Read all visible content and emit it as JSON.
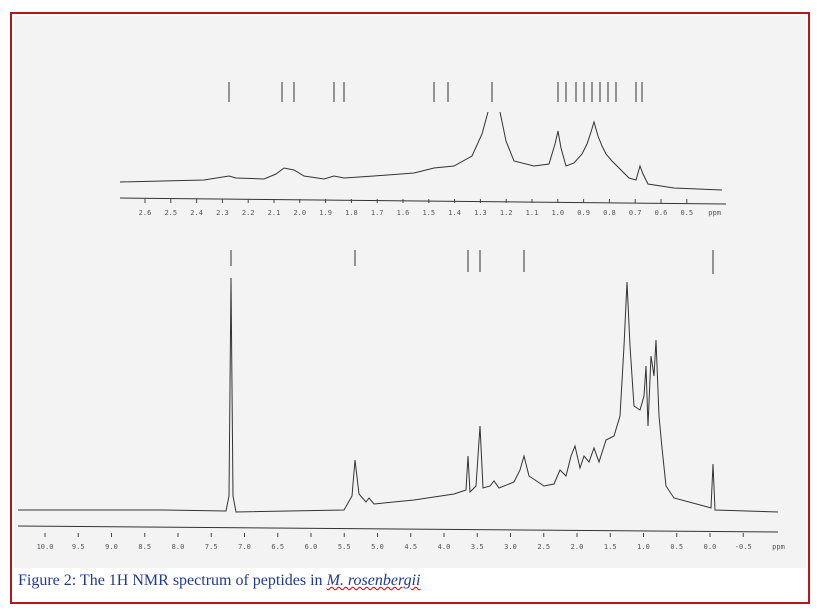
{
  "figure": {
    "inset_axis": {
      "ticks": [
        "2.6",
        "2.5",
        "2.4",
        "2.3",
        "2.2",
        "2.1",
        "2.0",
        "1.9",
        "1.8",
        "1.7",
        "1.6",
        "1.5",
        "1.4",
        "1.3",
        "1.2",
        "1.1",
        "1.0",
        "0.9",
        "0.8",
        "0.7",
        "0.6",
        "0.5"
      ],
      "unit": "ppm"
    },
    "main_axis": {
      "ticks": [
        "10.0",
        "9.5",
        "9.0",
        "8.5",
        "8.0",
        "7.5",
        "7.0",
        "6.5",
        "6.0",
        "5.5",
        "5.0",
        "4.5",
        "4.0",
        "3.5",
        "3.0",
        "2.5",
        "2.0",
        "1.5",
        "1.0",
        "0.5",
        "0.0",
        "-0.5"
      ],
      "unit": "ppm"
    },
    "caption": {
      "text": "Figure 2: The 1H NMR spectrum of peptides in ",
      "species": "M. rosenbergii"
    }
  }
}
